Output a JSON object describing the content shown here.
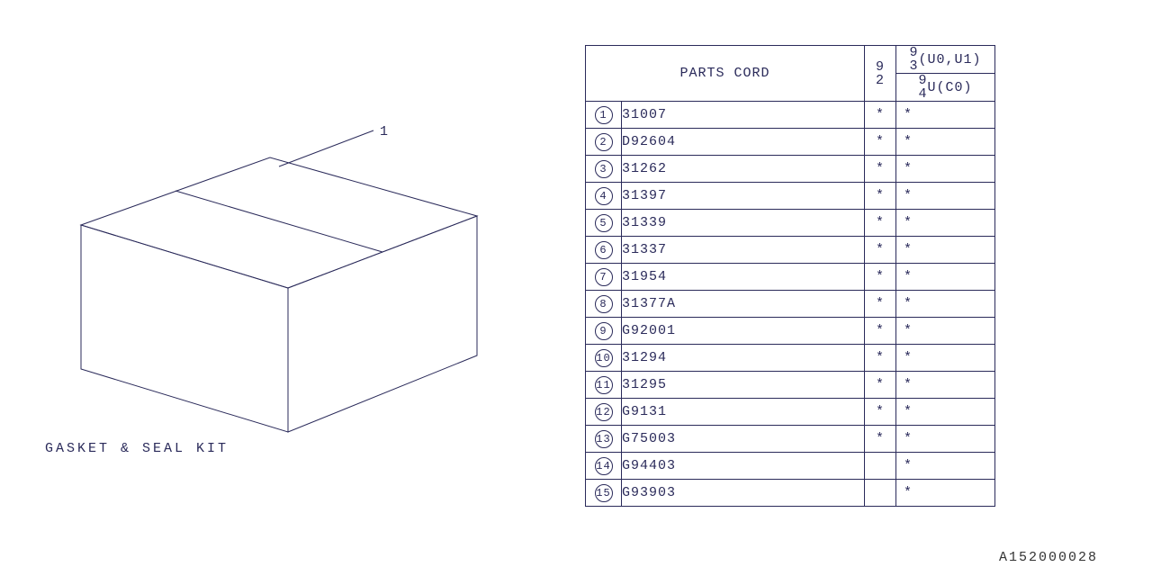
{
  "diagram": {
    "label": "GASKET & SEAL KIT",
    "callout": "1",
    "stroke": "#2a2a5a",
    "stroke_width": 1
  },
  "table": {
    "header": {
      "parts": "PARTS CORD",
      "col92_top": "9",
      "col92_bot": "2",
      "col93_a": "9",
      "col93_b": "3",
      "col93_suffix": "(U0,U1)",
      "col94_a": "9",
      "col94_b": "4",
      "col94_suffix": "U(C0)"
    },
    "rows": [
      {
        "n": "1",
        "code": "31007",
        "m1": "*",
        "m2": "*"
      },
      {
        "n": "2",
        "code": "D92604",
        "m1": "*",
        "m2": "*"
      },
      {
        "n": "3",
        "code": "31262",
        "m1": "*",
        "m2": "*"
      },
      {
        "n": "4",
        "code": "31397",
        "m1": "*",
        "m2": "*"
      },
      {
        "n": "5",
        "code": "31339",
        "m1": "*",
        "m2": "*"
      },
      {
        "n": "6",
        "code": "31337",
        "m1": "*",
        "m2": "*"
      },
      {
        "n": "7",
        "code": "31954",
        "m1": "*",
        "m2": "*"
      },
      {
        "n": "8",
        "code": "31377A",
        "m1": "*",
        "m2": "*"
      },
      {
        "n": "9",
        "code": "G92001",
        "m1": "*",
        "m2": "*"
      },
      {
        "n": "10",
        "code": "31294",
        "m1": "*",
        "m2": "*"
      },
      {
        "n": "11",
        "code": "31295",
        "m1": "*",
        "m2": "*"
      },
      {
        "n": "12",
        "code": "G9131",
        "m1": "*",
        "m2": "*"
      },
      {
        "n": "13",
        "code": "G75003",
        "m1": "*",
        "m2": "*"
      },
      {
        "n": "14",
        "code": "G94403",
        "m1": "",
        "m2": "*"
      },
      {
        "n": "15",
        "code": "G93903",
        "m1": "",
        "m2": "*"
      }
    ]
  },
  "footer": "A152000028"
}
